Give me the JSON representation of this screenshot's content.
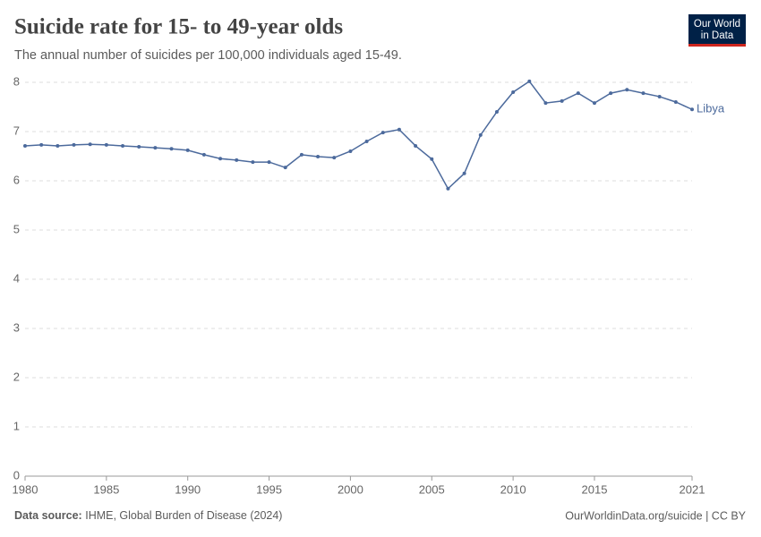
{
  "chart_data": {
    "type": "line",
    "title": "Suicide rate for 15- to 49-year olds",
    "subtitle": "The annual number of suicides per 100,000 individuals aged 15-49.",
    "x": [
      1980,
      1981,
      1982,
      1983,
      1984,
      1985,
      1986,
      1987,
      1988,
      1989,
      1990,
      1991,
      1992,
      1993,
      1994,
      1995,
      1996,
      1997,
      1998,
      1999,
      2000,
      2001,
      2002,
      2003,
      2004,
      2005,
      2006,
      2007,
      2008,
      2009,
      2010,
      2011,
      2012,
      2013,
      2014,
      2015,
      2016,
      2017,
      2018,
      2019,
      2020,
      2021
    ],
    "series": [
      {
        "name": "Libya",
        "color": "#4c6a9c",
        "values": [
          6.71,
          6.73,
          6.71,
          6.73,
          6.74,
          6.73,
          6.71,
          6.69,
          6.67,
          6.65,
          6.62,
          6.53,
          6.45,
          6.42,
          6.38,
          6.38,
          6.27,
          6.53,
          6.49,
          6.47,
          6.6,
          6.8,
          6.98,
          7.04,
          6.71,
          6.44,
          5.84,
          6.15,
          6.93,
          7.4,
          7.8,
          8.02,
          7.58,
          7.62,
          7.78,
          7.58,
          7.78,
          7.85,
          7.78,
          7.71,
          7.6,
          7.45
        ]
      }
    ],
    "xlim": [
      1980,
      2021
    ],
    "xticks": [
      1980,
      1985,
      1990,
      1995,
      2000,
      2005,
      2010,
      2015,
      2021
    ],
    "ylim": [
      0,
      8
    ],
    "yticks": [
      0,
      1,
      2,
      3,
      4,
      5,
      6,
      7,
      8
    ],
    "grid": true
  },
  "logo": {
    "line1": "Our World",
    "line2": "in Data"
  },
  "footer": {
    "source_label": "Data source:",
    "source": "IHME, Global Burden of Disease (2024)",
    "credit": "OurWorldinData.org/suicide | CC BY"
  }
}
